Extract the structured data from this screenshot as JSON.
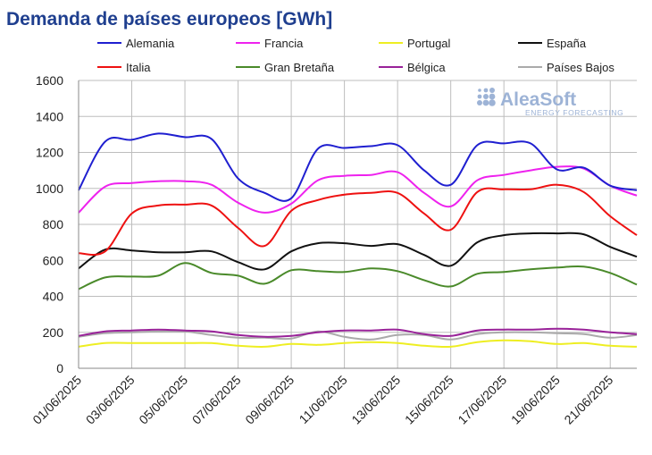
{
  "chart_data": {
    "type": "line",
    "title": "Demanda de países europeos [GWh]",
    "ylim": [
      0,
      1600
    ],
    "yticks": [
      0,
      200,
      400,
      600,
      800,
      1000,
      1200,
      1400,
      1600
    ],
    "x": [
      "01/06/2025",
      "02/06/2025",
      "03/06/2025",
      "04/06/2025",
      "05/06/2025",
      "06/06/2025",
      "07/06/2025",
      "08/06/2025",
      "09/06/2025",
      "10/06/2025",
      "11/06/2025",
      "12/06/2025",
      "13/06/2025",
      "14/06/2025",
      "15/06/2025",
      "16/06/2025",
      "17/06/2025",
      "18/06/2025",
      "19/06/2025",
      "20/06/2025",
      "21/06/2025",
      "22/06/2025"
    ],
    "xtick_labels": [
      "01/06/2025",
      "03/06/2025",
      "05/06/2025",
      "07/06/2025",
      "09/06/2025",
      "11/06/2025",
      "13/06/2025",
      "15/06/2025",
      "17/06/2025",
      "19/06/2025",
      "21/06/2025"
    ],
    "grid": true,
    "legend_position": "top",
    "series": [
      {
        "name": "Alemania",
        "color": "#1f1fd0",
        "values": [
          990,
          1260,
          1270,
          1305,
          1285,
          1275,
          1055,
          975,
          945,
          1220,
          1225,
          1235,
          1240,
          1100,
          1020,
          1240,
          1250,
          1250,
          1105,
          1115,
          1015,
          990
        ]
      },
      {
        "name": "Francia",
        "color": "#ee22ee",
        "values": [
          865,
          1010,
          1030,
          1040,
          1040,
          1020,
          920,
          865,
          915,
          1045,
          1070,
          1075,
          1090,
          975,
          900,
          1045,
          1075,
          1100,
          1120,
          1110,
          1015,
          960
        ]
      },
      {
        "name": "Portugal",
        "color": "#eeee22",
        "values": [
          120,
          140,
          140,
          140,
          140,
          140,
          125,
          120,
          135,
          130,
          140,
          145,
          140,
          125,
          120,
          145,
          155,
          150,
          135,
          140,
          125,
          120
        ]
      },
      {
        "name": "España",
        "color": "#111111",
        "values": [
          555,
          660,
          655,
          645,
          645,
          650,
          590,
          550,
          650,
          695,
          695,
          680,
          690,
          630,
          570,
          700,
          740,
          750,
          750,
          745,
          675,
          620
        ]
      },
      {
        "name": "Italia",
        "color": "#ee1111",
        "values": [
          640,
          650,
          860,
          905,
          910,
          905,
          780,
          680,
          875,
          935,
          965,
          975,
          975,
          860,
          770,
          980,
          995,
          995,
          1020,
          980,
          845,
          740
        ]
      },
      {
        "name": "Gran Bretaña",
        "color": "#4a8a2a",
        "values": [
          440,
          505,
          510,
          515,
          585,
          530,
          515,
          470,
          545,
          540,
          535,
          555,
          540,
          490,
          455,
          525,
          535,
          550,
          560,
          565,
          530,
          465
        ]
      },
      {
        "name": "Bélgica",
        "color": "#992299",
        "values": [
          180,
          205,
          210,
          215,
          210,
          205,
          185,
          175,
          180,
          200,
          210,
          210,
          215,
          190,
          180,
          210,
          215,
          215,
          220,
          215,
          200,
          190
        ]
      },
      {
        "name": "Países Bajos",
        "color": "#aaaaaa",
        "values": [
          175,
          195,
          200,
          205,
          205,
          185,
          170,
          170,
          165,
          205,
          175,
          160,
          185,
          185,
          160,
          190,
          200,
          200,
          195,
          190,
          170,
          185
        ]
      }
    ]
  },
  "watermark": {
    "main": "AleaSoft",
    "sub": "ENERGY FORECASTING",
    "color": "#9db3d6"
  }
}
